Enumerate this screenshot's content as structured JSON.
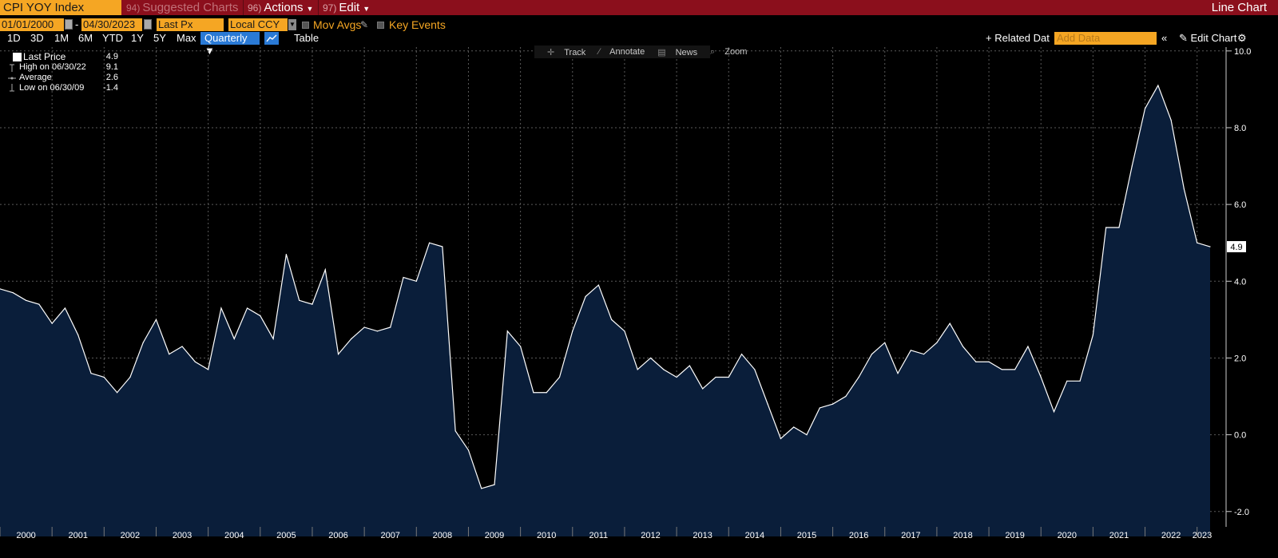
{
  "toolbar": {
    "ticker": "CPI YOY Index",
    "suggested_num": "94)",
    "suggested_label": "Suggested Charts",
    "actions_num": "96)",
    "actions_label": "Actions",
    "edit_num": "97)",
    "edit_label": "Edit",
    "chart_type": "Line Chart"
  },
  "controls": {
    "start_date": "01/01/2000",
    "end_date": "04/30/2023",
    "dash": "-",
    "field": "Last Px",
    "currency": "Local CCY",
    "mov_avgs": "Mov Avgs",
    "key_events": "Key Events"
  },
  "periods": [
    "1D",
    "3D",
    "1M",
    "6M",
    "YTD",
    "1Y",
    "5Y",
    "Max"
  ],
  "frequency": "Quarterly ▼",
  "table_label": "Table",
  "related_label": "+ Related Dat",
  "add_data_placeholder": "Add Data",
  "collapse_label": "«",
  "edit_chart_label": "✎ Edit Chart",
  "settings_icon": "gear-icon",
  "chart_tools": {
    "track": "Track",
    "annotate": "Annotate",
    "news": "News",
    "zoom": "Zoom"
  },
  "legend": {
    "last_label": "Last Price",
    "last_value": "4.9",
    "high_label": "High on 06/30/22",
    "high_value": "9.1",
    "avg_label": "Average",
    "avg_value": "2.6",
    "low_label": "Low on 06/30/09",
    "low_value": "-1.4"
  },
  "colors": {
    "line": "#ffffff",
    "fill": "#0a1e3a",
    "background": "#000000",
    "grid": "#5a5a5a",
    "topbar": "#8b0f1c",
    "accent": "#f5a623"
  },
  "chart_data": {
    "type": "area",
    "x_ticks": [
      "2000",
      "2001",
      "2002",
      "2003",
      "2004",
      "2005",
      "2006",
      "2007",
      "2008",
      "2009",
      "2010",
      "2011",
      "2012",
      "2013",
      "2014",
      "2015",
      "2016",
      "2017",
      "2018",
      "2019",
      "2020",
      "2021",
      "2022",
      "2023"
    ],
    "y_ticks": [
      "10.0",
      "8.0",
      "6.0",
      "4.0",
      "2.0",
      "0.0",
      "-2.0"
    ],
    "ylim": [
      -2.4,
      10.1
    ],
    "last_value_label": "4.9",
    "series": [
      {
        "values": [
          3.8,
          3.7,
          3.5,
          3.4,
          2.9,
          3.3,
          2.6,
          1.6,
          1.5,
          1.1,
          1.5,
          2.4,
          3.0,
          2.1,
          2.3,
          1.9,
          1.7,
          3.3,
          2.5,
          3.3,
          3.1,
          2.5,
          4.7,
          3.5,
          3.4,
          4.3,
          2.1,
          2.5,
          2.8,
          2.7,
          2.8,
          4.1,
          4.0,
          5.0,
          4.9,
          0.1,
          -0.4,
          -1.4,
          -1.3,
          2.7,
          2.3,
          1.1,
          1.1,
          1.5,
          2.7,
          3.6,
          3.9,
          3.0,
          2.7,
          1.7,
          2.0,
          1.7,
          1.5,
          1.8,
          1.2,
          1.5,
          1.5,
          2.1,
          1.7,
          0.8,
          -0.1,
          0.2,
          0.0,
          0.7,
          0.8,
          1.0,
          1.5,
          2.1,
          2.4,
          1.6,
          2.2,
          2.1,
          2.4,
          2.9,
          2.3,
          1.9,
          1.9,
          1.7,
          1.7,
          2.3,
          1.5,
          0.6,
          1.4,
          1.4,
          2.6,
          5.4,
          5.4,
          7.0,
          8.5,
          9.1,
          8.2,
          6.4,
          5.0,
          4.9
        ]
      }
    ]
  }
}
